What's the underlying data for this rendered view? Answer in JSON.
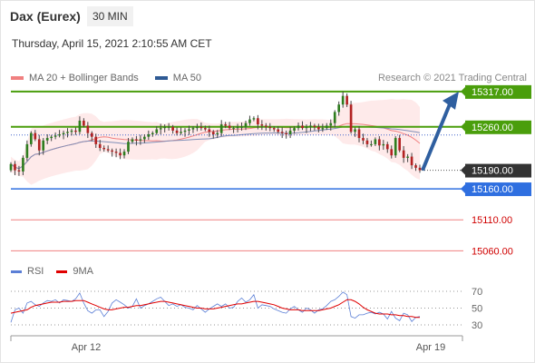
{
  "header": {
    "title": "Dax (Eurex)",
    "timeframe": "30 MIN",
    "datetime": "Thursday, April 15, 2021 2:10:55 AM CET",
    "credit": "Research © 2021 Trading Central"
  },
  "legend": {
    "bollinger": {
      "label": "MA 20 + Bollinger Bands",
      "color": "#f08080"
    },
    "ma50": {
      "label": "MA 50",
      "color": "#2e5a94"
    }
  },
  "rsi_legend": {
    "rsi": {
      "label": "RSI",
      "color": "#5b7fd6"
    },
    "ma9": {
      "label": "9MA",
      "color": "#e00000"
    }
  },
  "chart_data": [
    {
      "type": "candlestick",
      "ylim": [
        15040,
        15330
      ],
      "levels": [
        {
          "value": 15317.0,
          "label": "15317.00",
          "kind": "resistance",
          "color": "#4a9e0c"
        },
        {
          "value": 15260.0,
          "label": "15260.00",
          "kind": "resistance",
          "color": "#4a9e0c"
        },
        {
          "value": 15190.0,
          "label": "15190.00",
          "kind": "last-price",
          "color": "#333333"
        },
        {
          "value": 15160.0,
          "label": "15160.00",
          "kind": "pivot",
          "color": "#2f6fe0"
        },
        {
          "value": 15110.0,
          "label": "15110.00",
          "kind": "support",
          "color": "#f08080"
        },
        {
          "value": 15060.0,
          "label": "15060.00",
          "kind": "support",
          "color": "#f08080"
        }
      ],
      "x_ticks": [
        "Apr 12",
        "Apr 19"
      ],
      "close": [
        15200,
        15190,
        15188,
        15210,
        15232,
        15250,
        15240,
        15222,
        15238,
        15242,
        15244,
        15246,
        15248,
        15250,
        15252,
        15254,
        15252,
        15270,
        15262,
        15250,
        15244,
        15232,
        15226,
        15224,
        15222,
        15220,
        15218,
        15214,
        15220,
        15236,
        15240,
        15238,
        15240,
        15244,
        15248,
        15250,
        15256,
        15258,
        15260,
        15260,
        15254,
        15250,
        15252,
        15254,
        15256,
        15258,
        15260,
        15258,
        15256,
        15252,
        15248,
        15250,
        15264,
        15262,
        15258,
        15258,
        15260,
        15260,
        15266,
        15272,
        15274,
        15264,
        15262,
        15260,
        15258,
        15256,
        15252,
        15250,
        15248,
        15254,
        15258,
        15262,
        15258,
        15260,
        15262,
        15260,
        15256,
        15258,
        15262,
        15266,
        15284,
        15296,
        15310,
        15296,
        15252,
        15256,
        15242,
        15238,
        15232,
        15232,
        15240,
        15230,
        15232,
        15224,
        15214,
        15242,
        15222,
        15210,
        15212,
        15198,
        15194,
        15190
      ],
      "projection": {
        "from": 15190,
        "to": 15317
      }
    },
    {
      "type": "line",
      "title": "RSI",
      "ylim": [
        20,
        80
      ],
      "y_ticks": [
        70,
        50,
        30
      ],
      "rsi": [
        33,
        48,
        50,
        44,
        56,
        58,
        54,
        52,
        56,
        59,
        58,
        60,
        56,
        60,
        59,
        58,
        61,
        68,
        56,
        47,
        44,
        48,
        48,
        40,
        46,
        56,
        60,
        57,
        54,
        50,
        52,
        61,
        50,
        53,
        55,
        58,
        61,
        63,
        58,
        53,
        55,
        52,
        54,
        51,
        50,
        48,
        53,
        49,
        45,
        49,
        52,
        55,
        52,
        55,
        50,
        51,
        58,
        62,
        57,
        60,
        66,
        50,
        54,
        53,
        52,
        49,
        47,
        45,
        44,
        49,
        52,
        48,
        45,
        50,
        48,
        44,
        48,
        49,
        53,
        58,
        60,
        64,
        69,
        66,
        40,
        38,
        42,
        42,
        44,
        45,
        43,
        45,
        43,
        37,
        46,
        38,
        35,
        44,
        42,
        34,
        39,
        40
      ],
      "ma9": [
        44,
        45,
        46,
        47,
        48,
        51,
        53,
        54,
        55,
        56,
        57,
        57,
        57,
        58,
        58,
        58,
        59,
        59,
        59,
        57,
        55,
        53,
        51,
        49,
        48,
        48,
        49,
        50,
        51,
        51,
        52,
        53,
        53,
        54,
        55,
        56,
        57,
        58,
        58,
        57,
        56,
        55,
        54,
        53,
        52,
        51,
        50,
        50,
        49,
        49,
        49,
        50,
        51,
        52,
        53,
        54,
        55,
        55,
        56,
        57,
        58,
        58,
        57,
        56,
        55,
        54,
        52,
        50,
        49,
        48,
        48,
        48,
        47,
        47,
        47,
        47,
        47,
        48,
        49,
        50,
        52,
        54,
        57,
        60,
        60,
        58,
        55,
        51,
        48,
        46,
        44,
        43,
        43,
        43,
        42,
        42,
        41,
        41,
        40,
        40,
        39,
        39
      ]
    }
  ]
}
